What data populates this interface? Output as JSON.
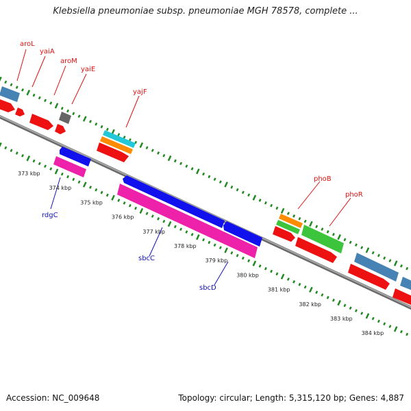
{
  "title": "Klebsiella pneumoniae subsp. pneumoniae MGH 78578, complete ...",
  "footer": {
    "accession": "Accession: NC_009648",
    "summary": "Topology: circular; Length: 5,315,120 bp; Genes: 4,887"
  },
  "colors": {
    "backbone": "#8a8a8a",
    "tick": "#1f8a1f",
    "label_top": "#dd1111",
    "label_bottom": "#1111bb"
  },
  "scale_ticks": [
    {
      "pos": 373,
      "label": "373 kbp"
    },
    {
      "pos": 374,
      "label": "374 kbp"
    },
    {
      "pos": 375,
      "label": "375 kbp"
    },
    {
      "pos": 376,
      "label": "376 kbp"
    },
    {
      "pos": 377,
      "label": "377 kbp"
    },
    {
      "pos": 378,
      "label": "378 kbp"
    },
    {
      "pos": 379,
      "label": "379 kbp"
    },
    {
      "pos": 380,
      "label": "380 kbp"
    },
    {
      "pos": 381,
      "label": "381 kbp"
    },
    {
      "pos": 382,
      "label": "382 kbp"
    },
    {
      "pos": 383,
      "label": "383 kbp"
    },
    {
      "pos": 384,
      "label": "384 kbp"
    }
  ],
  "top_labels": [
    "aroL",
    "yaiA",
    "aroM",
    "yaiE",
    "yajF",
    "phoB",
    "phoR"
  ],
  "bottom_labels": [
    "rdgC",
    "sbcC",
    "sbcD"
  ]
}
